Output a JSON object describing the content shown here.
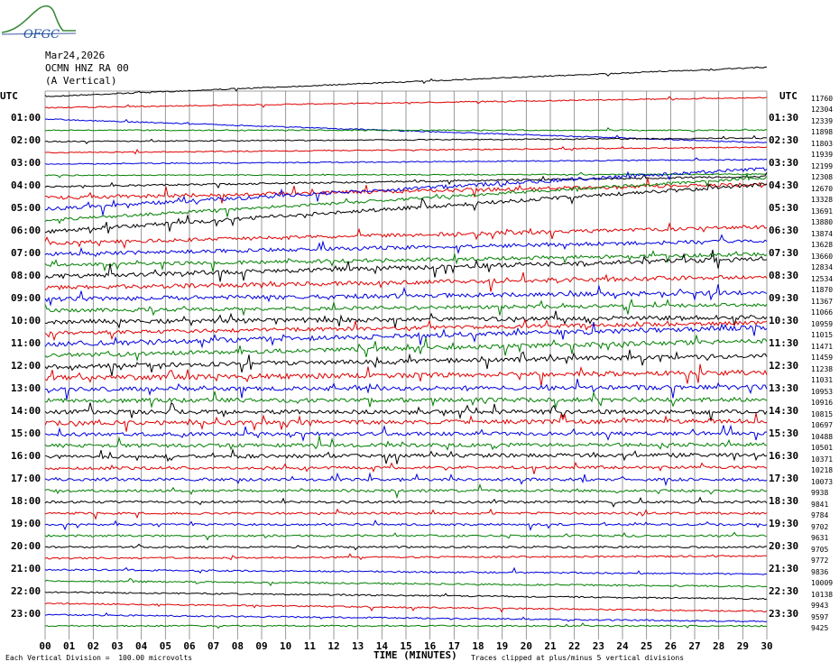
{
  "header": {
    "logo_text": "OFGC",
    "date": "Mar24,2026",
    "station": "OCMN HNZ RA 00",
    "component": "(A Vertical)"
  },
  "axis": {
    "left_header": "UTC",
    "right_header": "UTC",
    "xlabel": "TIME (MINUTES)",
    "footer_left": "Each Vertical Division =  100.00 microvolts",
    "footer_right": "Traces clipped at plus/minus 5 vertical divisions"
  },
  "chart_data": {
    "type": "line",
    "title": "",
    "xlabel": "TIME (MINUTES)",
    "ylabel": "UTC",
    "xlim": [
      0,
      30
    ],
    "xticks": [
      "00",
      "01",
      "02",
      "03",
      "04",
      "05",
      "06",
      "07",
      "08",
      "09",
      "10",
      "11",
      "12",
      "13",
      "14",
      "15",
      "16",
      "17",
      "18",
      "19",
      "20",
      "21",
      "22",
      "23",
      "24",
      "25",
      "26",
      "27",
      "28",
      "29",
      "30"
    ],
    "left_hour_labels": [
      "",
      "01:00",
      "02:00",
      "03:00",
      "04:00",
      "05:00",
      "06:00",
      "07:00",
      "08:00",
      "09:00",
      "10:00",
      "11:00",
      "12:00",
      "13:00",
      "14:00",
      "15:00",
      "16:00",
      "17:00",
      "18:00",
      "19:00",
      "20:00",
      "21:00",
      "22:00",
      "23:00"
    ],
    "right_hour_labels": [
      "",
      "01:30",
      "02:30",
      "03:30",
      "04:30",
      "05:30",
      "06:30",
      "07:30",
      "08:30",
      "09:30",
      "10:30",
      "11:30",
      "12:30",
      "13:30",
      "14:30",
      "15:30",
      "16:30",
      "17:30",
      "18:30",
      "19:30",
      "20:30",
      "21:30",
      "22:30",
      "23:30"
    ],
    "trace_colors": [
      "#000000",
      "#e00000",
      "#0000e0",
      "#008000"
    ],
    "grid": true,
    "trace_counts": [
      "11760",
      "12304",
      "12339",
      "11898",
      "11803",
      "11939",
      "12199",
      "12308",
      "12670",
      "13328",
      "13691",
      "13880",
      "13874",
      "13628",
      "13660",
      "12834",
      "12534",
      "11870",
      "11367",
      "11066",
      "10959",
      "11015",
      "11471",
      "11459",
      "11238",
      "11031",
      "10953",
      "10916",
      "10815",
      "10697",
      "10488",
      "10501",
      "10371",
      "10218",
      "10073",
      "9938",
      "9841",
      "9784",
      "9702",
      "9631",
      "9705",
      "9772",
      "9836",
      "10009",
      "10138",
      "9943",
      "9597",
      "9425"
    ],
    "trace_activity": [
      0.8,
      0.8,
      0.8,
      0.8,
      0.8,
      0.8,
      0.8,
      0.8,
      1.2,
      2.5,
      2.5,
      2.0,
      2.5,
      2.5,
      2.5,
      2.5,
      3.0,
      3.0,
      3.0,
      2.5,
      3.0,
      2.5,
      3.5,
      3.0,
      3.0,
      3.5,
      3.0,
      3.0,
      3.0,
      3.0,
      2.5,
      2.5,
      2.5,
      2.0,
      2.0,
      1.8,
      1.6,
      1.5,
      1.4,
      1.4,
      1.3,
      1.2,
      1.2,
      1.2,
      1.0,
      1.0,
      1.0,
      1.0
    ],
    "trace_drift": [
      -2.6,
      -0.9,
      2.1,
      0.0,
      -0.3,
      -0.5,
      -0.4,
      -0.1,
      -0.9,
      -1.2,
      -3.6,
      -3.8,
      -4.2,
      -1.4,
      -1.2,
      -1.0,
      -1.6,
      -1.0,
      -0.6,
      -0.5,
      -0.4,
      -0.9,
      -1.5,
      -1.3,
      -1.0,
      -0.5,
      -0.2,
      -0.1,
      0.0,
      -0.2,
      -0.1,
      -0.1,
      -0.2,
      -0.1,
      0.0,
      0.0,
      0.0,
      0.0,
      0.0,
      0.0,
      0.0,
      -0.2,
      0.4,
      0.5,
      0.6,
      0.7,
      0.6,
      0.0
    ]
  }
}
